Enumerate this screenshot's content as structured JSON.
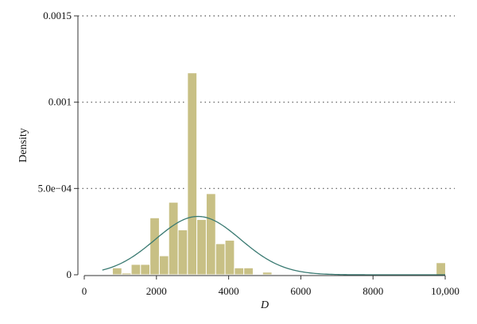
{
  "colors": {
    "bar_fill": "#c8c085",
    "curve": "#3a7a72",
    "grid": "#555555",
    "axis": "#333333"
  },
  "chart_data": {
    "type": "bar",
    "subtype": "histogram with fitted normal density",
    "xlabel": "D",
    "ylabel": "Density",
    "xlim": [
      0,
      10000
    ],
    "ylim": [
      0,
      0.0015
    ],
    "x_ticks": [
      0,
      2000,
      4000,
      6000,
      8000,
      10000
    ],
    "x_tick_labels": [
      "0",
      "2000",
      "4000",
      "6000",
      "8000",
      "10,000"
    ],
    "y_ticks": [
      0,
      0.0005,
      0.001,
      0.0015
    ],
    "y_tick_labels": [
      "0",
      "5.0e−04",
      "0.001",
      "0.0015"
    ],
    "grid": "horizontal dotted at y ticks",
    "bin_width": 260,
    "bins": [
      {
        "x0": 780,
        "value": 4e-05
      },
      {
        "x0": 1040,
        "value": 1e-05
      },
      {
        "x0": 1300,
        "value": 6e-05
      },
      {
        "x0": 1560,
        "value": 6e-05
      },
      {
        "x0": 1820,
        "value": 0.00033
      },
      {
        "x0": 2080,
        "value": 0.00011
      },
      {
        "x0": 2340,
        "value": 0.00042
      },
      {
        "x0": 2600,
        "value": 0.00026
      },
      {
        "x0": 2860,
        "value": 0.00117
      },
      {
        "x0": 3120,
        "value": 0.00032
      },
      {
        "x0": 3380,
        "value": 0.00047
      },
      {
        "x0": 3640,
        "value": 0.00018
      },
      {
        "x0": 3900,
        "value": 0.0002
      },
      {
        "x0": 4160,
        "value": 4e-05
      },
      {
        "x0": 4420,
        "value": 4e-05
      },
      {
        "x0": 4940,
        "value": 1.5e-05
      },
      {
        "x0": 9750,
        "value": 7e-05
      }
    ],
    "fitted_curve": {
      "distribution": "normal",
      "mean": 3150,
      "sd": 1180,
      "x_range": [
        500,
        10000
      ]
    }
  }
}
